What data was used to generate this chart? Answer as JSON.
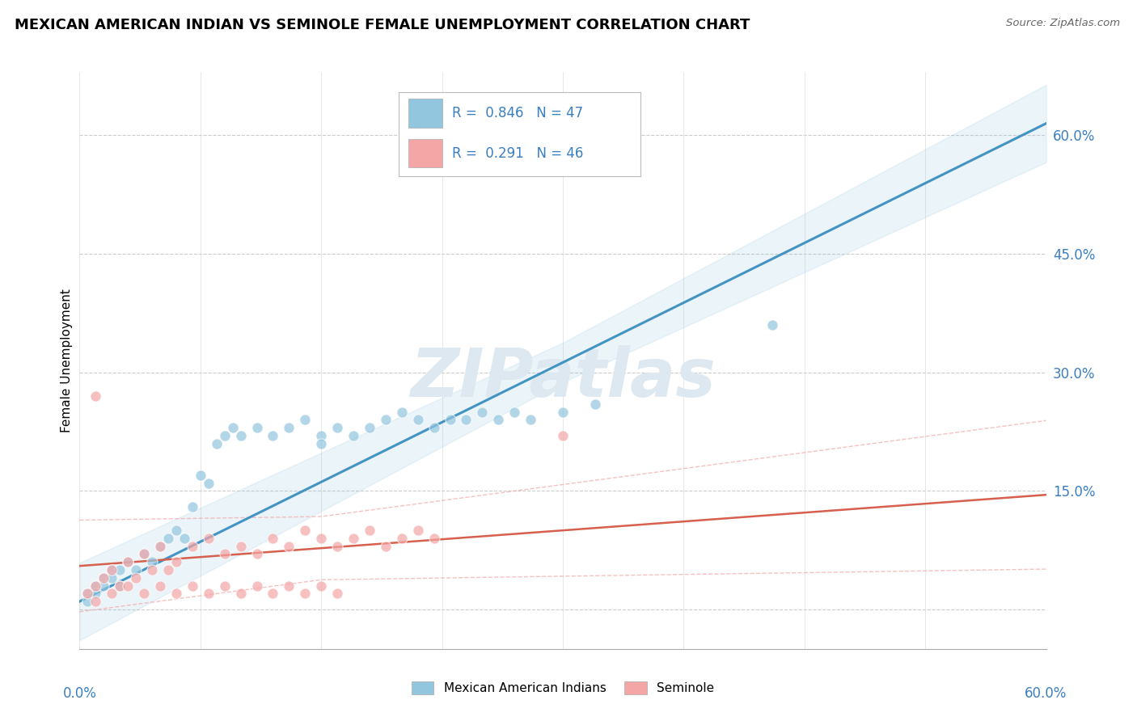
{
  "title": "MEXICAN AMERICAN INDIAN VS SEMINOLE FEMALE UNEMPLOYMENT CORRELATION CHART",
  "source": "Source: ZipAtlas.com",
  "ylabel": "Female Unemployment",
  "y_ticks": [
    0.0,
    0.15,
    0.3,
    0.45,
    0.6
  ],
  "y_tick_labels": [
    "",
    "15.0%",
    "30.0%",
    "45.0%",
    "60.0%"
  ],
  "x_range": [
    0.0,
    0.6
  ],
  "y_range": [
    -0.05,
    0.68
  ],
  "legend1_R": "0.846",
  "legend1_N": "47",
  "legend2_R": "0.291",
  "legend2_N": "46",
  "legend1_label": "Mexican American Indians",
  "legend2_label": "Seminole",
  "blue_color": "#92c5de",
  "pink_color": "#f4a6a6",
  "blue_line_color": "#4393c3",
  "pink_line_color": "#d6604d",
  "blue_ci_color": "#92c5de",
  "pink_ci_color": "#f4a6a6",
  "watermark": "ZIPatlas",
  "watermark_color": "#dde8f0",
  "blue_scatter_x": [
    0.005,
    0.01,
    0.015,
    0.02,
    0.025,
    0.03,
    0.035,
    0.04,
    0.045,
    0.05,
    0.055,
    0.06,
    0.065,
    0.07,
    0.075,
    0.08,
    0.085,
    0.09,
    0.095,
    0.1,
    0.11,
    0.12,
    0.13,
    0.14,
    0.15,
    0.16,
    0.17,
    0.18,
    0.19,
    0.2,
    0.21,
    0.22,
    0.23,
    0.24,
    0.25,
    0.26,
    0.27,
    0.28,
    0.3,
    0.32,
    0.005,
    0.01,
    0.015,
    0.02,
    0.025,
    0.43,
    0.15
  ],
  "blue_scatter_y": [
    0.02,
    0.03,
    0.04,
    0.05,
    0.03,
    0.06,
    0.05,
    0.07,
    0.06,
    0.08,
    0.09,
    0.1,
    0.09,
    0.13,
    0.17,
    0.16,
    0.21,
    0.22,
    0.23,
    0.22,
    0.23,
    0.22,
    0.23,
    0.24,
    0.22,
    0.23,
    0.22,
    0.23,
    0.24,
    0.25,
    0.24,
    0.23,
    0.24,
    0.24,
    0.25,
    0.24,
    0.25,
    0.24,
    0.25,
    0.26,
    0.01,
    0.02,
    0.03,
    0.04,
    0.05,
    0.36,
    0.21
  ],
  "pink_scatter_x": [
    0.005,
    0.01,
    0.015,
    0.02,
    0.025,
    0.03,
    0.035,
    0.04,
    0.045,
    0.05,
    0.055,
    0.06,
    0.07,
    0.08,
    0.09,
    0.1,
    0.11,
    0.12,
    0.13,
    0.14,
    0.15,
    0.16,
    0.17,
    0.18,
    0.19,
    0.2,
    0.21,
    0.22,
    0.01,
    0.02,
    0.03,
    0.04,
    0.05,
    0.06,
    0.07,
    0.08,
    0.09,
    0.1,
    0.11,
    0.12,
    0.13,
    0.14,
    0.15,
    0.16,
    0.3,
    0.01
  ],
  "pink_scatter_y": [
    0.02,
    0.03,
    0.04,
    0.05,
    0.03,
    0.06,
    0.04,
    0.07,
    0.05,
    0.08,
    0.05,
    0.06,
    0.08,
    0.09,
    0.07,
    0.08,
    0.07,
    0.09,
    0.08,
    0.1,
    0.09,
    0.08,
    0.09,
    0.1,
    0.08,
    0.09,
    0.1,
    0.09,
    0.01,
    0.02,
    0.03,
    0.02,
    0.03,
    0.02,
    0.03,
    0.02,
    0.03,
    0.02,
    0.03,
    0.02,
    0.03,
    0.02,
    0.03,
    0.02,
    0.22,
    0.27
  ]
}
